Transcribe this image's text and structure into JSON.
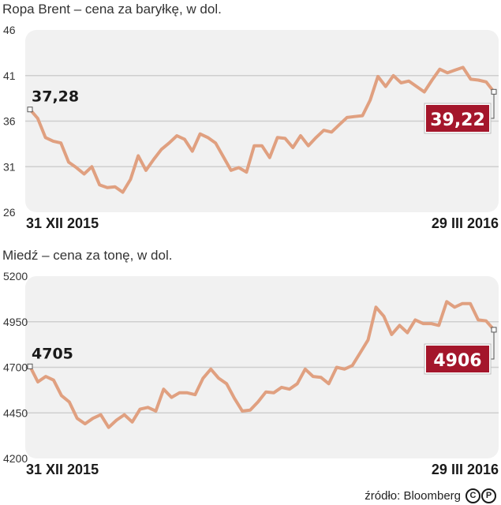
{
  "chart_data": [
    {
      "type": "line",
      "title": "Ropa Brent – cena za baryłkę, w dol.",
      "yticks": [
        "46",
        "41",
        "36",
        "31",
        "26"
      ],
      "ylim": [
        26,
        46
      ],
      "x_start_label": "31 XII 2015",
      "x_end_label": "29 III 2016",
      "start_value_label": "37,28",
      "end_value_label": "39,22",
      "line_color": "#e0a080",
      "end_badge_color": "#a4162b",
      "grid": true,
      "values": [
        37.28,
        36.3,
        34.2,
        33.8,
        33.6,
        31.5,
        30.9,
        30.2,
        31.0,
        29.0,
        28.7,
        28.8,
        28.2,
        29.6,
        32.2,
        30.6,
        31.8,
        32.9,
        33.6,
        34.4,
        34.0,
        32.7,
        34.6,
        34.2,
        33.6,
        32.1,
        30.6,
        30.9,
        30.4,
        33.3,
        33.3,
        32.0,
        34.2,
        34.1,
        33.1,
        34.4,
        33.3,
        34.2,
        35.0,
        34.8,
        35.6,
        36.4,
        36.5,
        36.6,
        38.3,
        40.9,
        39.8,
        41.0,
        40.2,
        40.4,
        39.8,
        39.2,
        40.5,
        41.7,
        41.3,
        41.6,
        41.9,
        40.6,
        40.5,
        40.3,
        39.22
      ]
    },
    {
      "type": "line",
      "title": "Miedź – cena za tonę, w dol.",
      "yticks": [
        "5200",
        "4950",
        "4700",
        "4450",
        "4200"
      ],
      "ylim": [
        4200,
        5200
      ],
      "x_start_label": "31 XII 2015",
      "x_end_label": "29 III 2016",
      "start_value_label": "4705",
      "end_value_label": "4906",
      "line_color": "#e0a080",
      "end_badge_color": "#a4162b",
      "grid": true,
      "values": [
        4705,
        4620,
        4650,
        4630,
        4545,
        4510,
        4420,
        4390,
        4420,
        4440,
        4370,
        4410,
        4440,
        4400,
        4470,
        4480,
        4460,
        4580,
        4535,
        4560,
        4560,
        4550,
        4640,
        4690,
        4640,
        4610,
        4530,
        4460,
        4465,
        4510,
        4565,
        4560,
        4590,
        4580,
        4610,
        4690,
        4650,
        4645,
        4610,
        4700,
        4690,
        4710,
        4780,
        4850,
        5030,
        4980,
        4880,
        4930,
        4890,
        4960,
        4940,
        4940,
        4930,
        5060,
        5030,
        5050,
        5050,
        4960,
        4955,
        4906
      ]
    }
  ],
  "footer": {
    "source_text": "źródło: Bloomberg",
    "logo_letters": [
      "C",
      "P"
    ]
  }
}
